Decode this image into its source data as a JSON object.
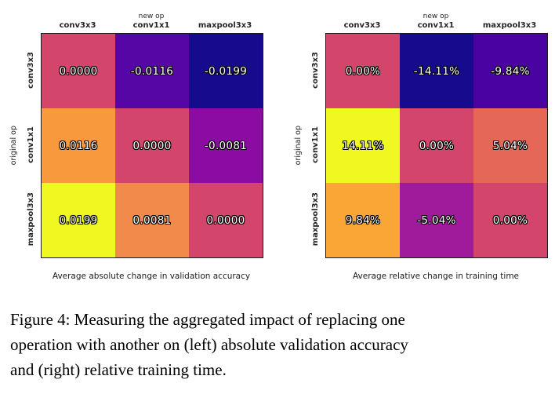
{
  "figure": {
    "caption_lines": [
      "Figure 4: Measuring the aggregated impact of replacing one",
      "operation with another on (left) absolute validation accuracy",
      "and (right) relative training time."
    ]
  },
  "heatmaps": {
    "left": {
      "top_group_label": "new op",
      "side_group_label": "original op",
      "col_labels": [
        "conv3x3",
        "conv1x1",
        "maxpool3x3"
      ],
      "row_labels": [
        "conv3x3",
        "conv1x1",
        "maxpool3x3"
      ],
      "caption": "Average absolute change in validation accuracy",
      "cells": [
        [
          {
            "text": "0.0000",
            "bg": "#d4456c"
          },
          {
            "text": "-0.0116",
            "bg": "#5506a4"
          },
          {
            "text": "-0.0199",
            "bg": "#150b8c"
          }
        ],
        [
          {
            "text": "0.0116",
            "bg": "#f9993e"
          },
          {
            "text": "0.0000",
            "bg": "#d4456c"
          },
          {
            "text": "-0.0081",
            "bg": "#8c0ba3"
          }
        ],
        [
          {
            "text": "0.0199",
            "bg": "#eff821"
          },
          {
            "text": "0.0081",
            "bg": "#f18a4a"
          },
          {
            "text": "0.0000",
            "bg": "#d4456c"
          }
        ]
      ]
    },
    "right": {
      "top_group_label": "new op",
      "side_group_label": "original op",
      "col_labels": [
        "conv3x3",
        "conv1x1",
        "maxpool3x3"
      ],
      "row_labels": [
        "conv3x3",
        "conv1x1",
        "maxpool3x3"
      ],
      "caption": "Average relative change in training time",
      "cells": [
        [
          {
            "text": "0.00%",
            "bg": "#d4456c"
          },
          {
            "text": "-14.11%",
            "bg": "#150b8c"
          },
          {
            "text": "-9.84%",
            "bg": "#4a03a0"
          }
        ],
        [
          {
            "text": "14.11%",
            "bg": "#eff821"
          },
          {
            "text": "0.00%",
            "bg": "#d4456c"
          },
          {
            "text": "5.04%",
            "bg": "#e56757"
          }
        ],
        [
          {
            "text": "9.84%",
            "bg": "#faa637"
          },
          {
            "text": "-5.04%",
            "bg": "#a01b9b"
          },
          {
            "text": "0.00%",
            "bg": "#d4456c"
          }
        ]
      ]
    }
  },
  "chart_data": [
    {
      "type": "heatmap",
      "title": "Average absolute change in validation accuracy",
      "x_axis_label": "new op",
      "y_axis_label": "original op",
      "columns": [
        "conv3x3",
        "conv1x1",
        "maxpool3x3"
      ],
      "rows": [
        "conv3x3",
        "conv1x1",
        "maxpool3x3"
      ],
      "values": [
        [
          0.0,
          -0.0116,
          -0.0199
        ],
        [
          0.0116,
          0.0,
          -0.0081
        ],
        [
          0.0199,
          0.0081,
          0.0
        ]
      ],
      "colormap": "plasma",
      "legend": "none"
    },
    {
      "type": "heatmap",
      "title": "Average relative change in training time",
      "x_axis_label": "new op",
      "y_axis_label": "original op",
      "columns": [
        "conv3x3",
        "conv1x1",
        "maxpool3x3"
      ],
      "rows": [
        "conv3x3",
        "conv1x1",
        "maxpool3x3"
      ],
      "values_percent": [
        [
          0.0,
          -14.11,
          -9.84
        ],
        [
          14.11,
          0.0,
          5.04
        ],
        [
          9.84,
          -5.04,
          0.0
        ]
      ],
      "colormap": "plasma",
      "legend": "none"
    }
  ]
}
